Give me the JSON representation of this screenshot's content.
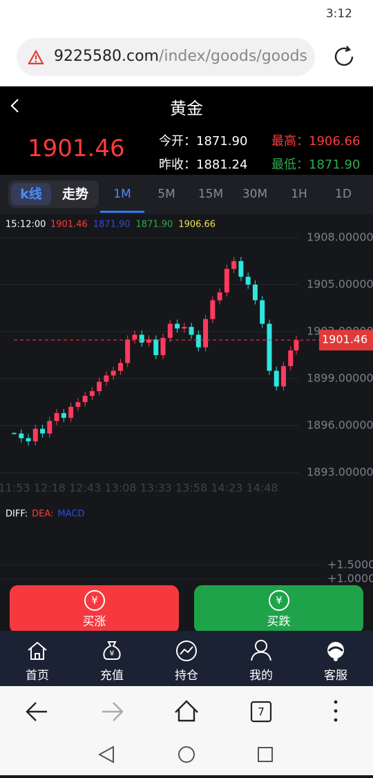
{
  "status_bar": {
    "time": "3:12"
  },
  "address_bar": {
    "domain": "9225580.com",
    "path": "/index/goods/goods"
  },
  "header": {
    "title": "黄金",
    "price": "1901.46",
    "stats": [
      {
        "label": "今开：",
        "value": "1871.90"
      },
      {
        "label": "最高：",
        "value": "1906.66"
      },
      {
        "label": "昨收：",
        "value": "1881.24"
      },
      {
        "label": "最低：",
        "value": "1871.90"
      }
    ]
  },
  "tabs": {
    "toggle": [
      "k线",
      "走势"
    ],
    "periods": [
      "1M",
      "5M",
      "15M",
      "30M",
      "1H",
      "1D"
    ]
  },
  "chart_data": [
    {
      "type": "candlestick",
      "info": {
        "time": "15:12:00",
        "items": [
          {
            "text": "1901.46",
            "color": "#ff3b3b"
          },
          {
            "text": "1871.90",
            "color": "#2f4bd8"
          },
          {
            "text": "1871.90",
            "color": "#2eab4e"
          },
          {
            "text": "1906.66",
            "color": "#f2e14c"
          }
        ]
      },
      "x": [
        "11:53",
        "11:58",
        "12:03",
        "12:08",
        "12:13",
        "12:18",
        "12:23",
        "12:28",
        "12:33",
        "12:38",
        "12:43",
        "12:48",
        "12:53",
        "12:58",
        "13:03",
        "13:08",
        "13:13",
        "13:18",
        "13:23",
        "13:28",
        "13:33",
        "13:38",
        "13:43",
        "13:48",
        "13:53",
        "13:58",
        "14:03",
        "14:08",
        "14:13",
        "14:18",
        "14:23",
        "14:28",
        "14:33",
        "14:38",
        "14:43",
        "14:48",
        "14:53",
        "14:58",
        "15:03",
        "15:08",
        "15:12"
      ],
      "values": [
        1895.5,
        1895.2,
        1895.0,
        1895.8,
        1895.5,
        1896.3,
        1896.8,
        1896.5,
        1897.2,
        1897.5,
        1897.9,
        1898.2,
        1898.8,
        1899.2,
        1899.5,
        1900.0,
        1901.5,
        1901.8,
        1901.3,
        1901.5,
        1900.5,
        1901.6,
        1902.5,
        1902.2,
        1902.3,
        1901.8,
        1901.0,
        1902.8,
        1904.0,
        1904.5,
        1906.0,
        1906.5,
        1905.5,
        1905.0,
        1904.0,
        1902.5,
        1899.5,
        1898.5,
        1899.8,
        1900.8,
        1901.46
      ],
      "up_color": "#ff3b5c",
      "down_color": "#2ee6e0",
      "xlim": [
        "11:43",
        "15:13"
      ],
      "xticks": [
        "11:53",
        "12:18",
        "12:43",
        "13:08",
        "13:33",
        "13:58",
        "14:23",
        "14:48"
      ],
      "ylim": [
        1892.3,
        1909.05
      ],
      "yticks": [
        {
          "value": 1908,
          "label": "1908.00000"
        },
        {
          "value": 1905,
          "label": "1905.00000"
        },
        {
          "value": 1902,
          "label": "1902.00000"
        },
        {
          "value": 1899,
          "label": "1899.00000"
        },
        {
          "value": 1896,
          "label": "1896.00000"
        },
        {
          "value": 1893,
          "label": "1893.00000"
        }
      ],
      "grid": true,
      "last_price": 1901.46,
      "last_color": "#e03a3a"
    },
    {
      "type": "macd",
      "legend": [
        {
          "name": "DIFF:",
          "color": "#ffffff"
        },
        {
          "name": "DEA:",
          "color": "#ff3b3b"
        },
        {
          "name": "MACD",
          "color": "#2f4bd8"
        }
      ],
      "ylim": [
        0,
        3
      ],
      "yticks": [
        {
          "value": 1.5,
          "label": "+1.5000"
        },
        {
          "value": 1,
          "label": "+1.0000"
        }
      ]
    }
  ],
  "buttons": [
    {
      "icon": "¥",
      "label": "买涨"
    },
    {
      "icon": "¥",
      "label": "买跌"
    }
  ],
  "nav": [
    "首页",
    "充值",
    "持仓",
    "我的",
    "客服"
  ],
  "browser_bar": {
    "tab_count": "7"
  }
}
